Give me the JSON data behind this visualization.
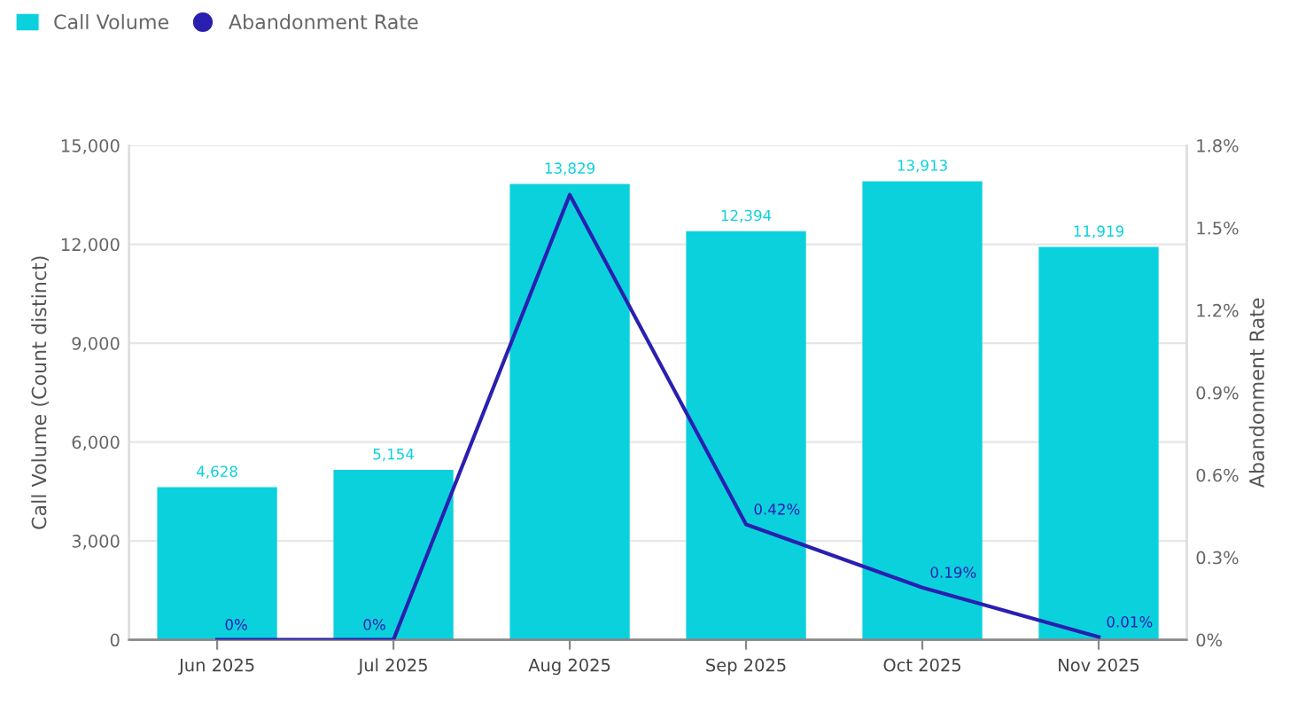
{
  "chart_data": {
    "type": "bar",
    "categories": [
      "Jun 2025",
      "Jul 2025",
      "Aug 2025",
      "Sep 2025",
      "Oct 2025",
      "Nov 2025"
    ],
    "series": [
      {
        "name": "Call Volume",
        "color": "#0bd1dc",
        "values": [
          4628,
          5154,
          13829,
          12394,
          13913,
          11919
        ],
        "value_labels": [
          "4,628",
          "5,154",
          "13,829",
          "12,394",
          "13,913",
          "11,919"
        ]
      },
      {
        "name": "Abandonment Rate",
        "type": "line",
        "axis": "y2",
        "color": "#2a1fb0",
        "values": [
          0,
          0,
          1.62,
          0.42,
          0.19,
          0.01
        ],
        "value_labels": [
          "0%",
          "0%",
          null,
          "0.42%",
          "0.19%",
          "0.01%"
        ]
      }
    ],
    "ylabel": "Call Volume (Count distinct)",
    "y2label": "Abandonment Rate",
    "ylim": [
      0,
      15000
    ],
    "yticks": [
      {
        "value": 0,
        "label": "0"
      },
      {
        "value": 3000,
        "label": "3,000"
      },
      {
        "value": 6000,
        "label": "6,000"
      },
      {
        "value": 9000,
        "label": "9,000"
      },
      {
        "value": 12000,
        "label": "12,000"
      },
      {
        "value": 15000,
        "label": "15,000"
      }
    ],
    "y2lim": [
      0,
      1.8
    ],
    "y2ticks": [
      {
        "value": 0,
        "label": "0%"
      },
      {
        "value": 0.3,
        "label": "0.3%"
      },
      {
        "value": 0.6,
        "label": "0.6%"
      },
      {
        "value": 0.9,
        "label": "0.9%"
      },
      {
        "value": 1.2,
        "label": "1.2%"
      },
      {
        "value": 1.5,
        "label": "1.5%"
      },
      {
        "value": 1.8,
        "label": "1.8%"
      }
    ],
    "grid": "y",
    "legend": "top left",
    "marker": "none"
  }
}
